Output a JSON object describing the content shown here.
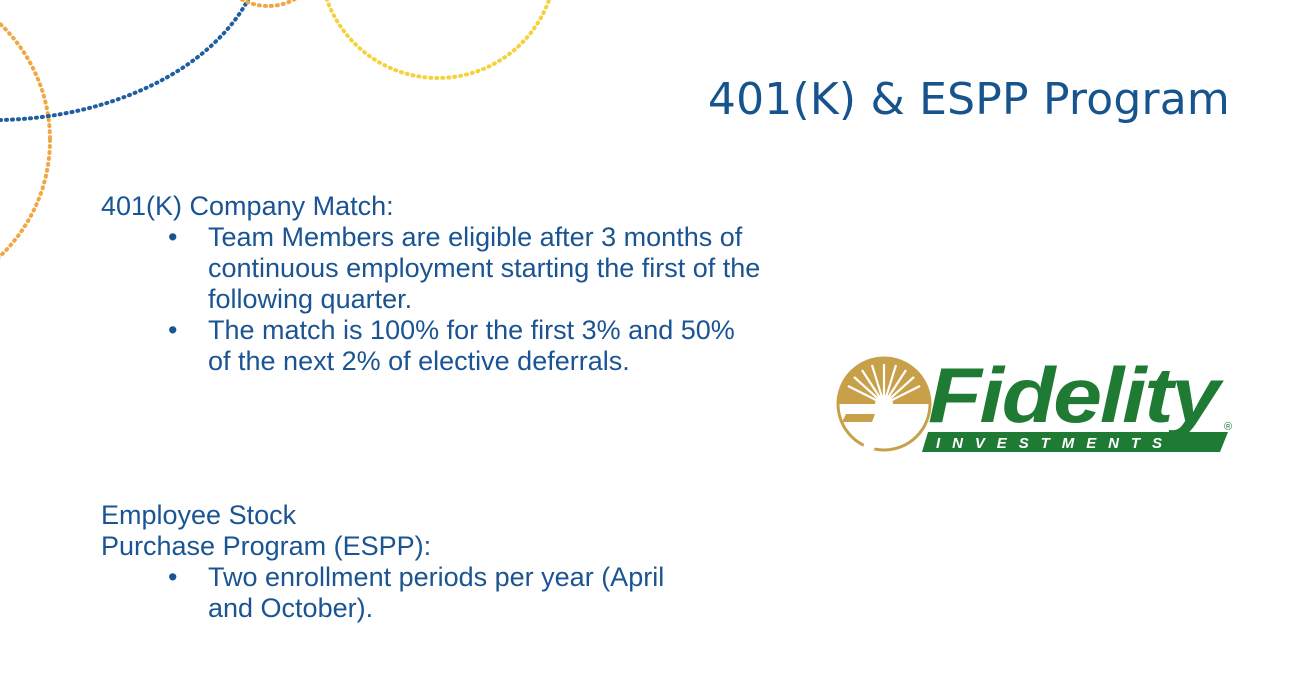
{
  "slide": {
    "title": "401(K) & ESPP Program"
  },
  "section_401k": {
    "heading": "401(K) Company Match:",
    "bullets": [
      "Team Members are eligible after 3 months of continuous employment starting the first of the following quarter.",
      {
        "line1": "The match is 100% for the first 3% and 50%",
        "line2": "of the next 2% of elective deferrals."
      }
    ]
  },
  "section_espp": {
    "heading_line1": "Employee Stock",
    "heading_line2": "Purchase Program (ESPP):",
    "bullets": [
      "Two enrollment periods per year (April and October)."
    ]
  },
  "bullet_glyph": "•",
  "logo": {
    "wordmark": "Fidelity",
    "subtext": "INVESTMENTS",
    "registered": "®",
    "colors": {
      "green": "#1f7a34",
      "gold": "#c8a04a"
    }
  },
  "colors": {
    "title": "#17548e",
    "body": "#1a5493",
    "deco_orange": "#f0a842",
    "deco_yellow": "#f4d23c",
    "deco_blue": "#1f5fa0"
  }
}
